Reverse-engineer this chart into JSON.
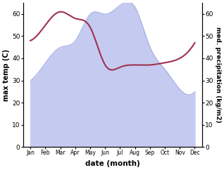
{
  "months": [
    "Jan",
    "Feb",
    "Mar",
    "Apr",
    "May",
    "Jun",
    "Jul",
    "Aug",
    "Sep",
    "Oct",
    "Nov",
    "Dec"
  ],
  "month_indices": [
    0,
    1,
    2,
    3,
    4,
    5,
    6,
    7,
    8,
    9,
    10,
    11
  ],
  "precipitation": [
    30,
    38,
    45,
    48,
    60,
    60,
    64,
    63,
    45,
    35,
    26,
    25
  ],
  "temperature": [
    48,
    55,
    61,
    58,
    54,
    37,
    36,
    37,
    37,
    38,
    40,
    47
  ],
  "temp_color": "#a03050",
  "precip_fill_color": "#c5cbf0",
  "precip_line_color": "#9aa4e0",
  "ylim": [
    0,
    65
  ],
  "yticks": [
    0,
    10,
    20,
    30,
    40,
    50,
    60
  ],
  "xlabel": "date (month)",
  "ylabel_left": "max temp (C)",
  "ylabel_right": "med. precipitation (kg/m2)",
  "fig_width": 3.18,
  "fig_height": 2.42,
  "dpi": 100
}
